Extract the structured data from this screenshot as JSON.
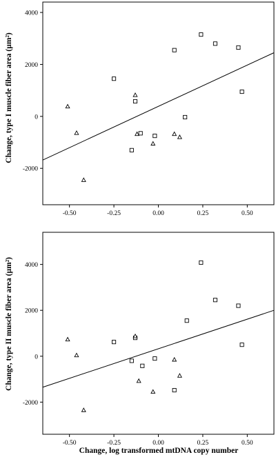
{
  "xlabel": "Change, log transformed mtDNA copy number",
  "chart_data": [
    {
      "type": "scatter",
      "title": "",
      "xlabel": "",
      "ylabel": "Change, type I muscle fiber area (µm²)",
      "xlim": [
        -0.65,
        0.65
      ],
      "ylim": [
        -3400,
        4400
      ],
      "xticks": [
        -0.5,
        -0.25,
        0.0,
        0.25,
        0.5
      ],
      "xtick_labels": [
        "-0.50",
        "-0.25",
        "0.00",
        "0.25",
        "0.50"
      ],
      "yticks": [
        -2000,
        0,
        2000,
        4000
      ],
      "ytick_labels": [
        "-2000",
        "0",
        "2000",
        "4000"
      ],
      "grid": false,
      "series": [
        {
          "marker": "square",
          "points": [
            [
              -0.25,
              1450
            ],
            [
              -0.15,
              -1300
            ],
            [
              -0.13,
              580
            ],
            [
              -0.1,
              -650
            ],
            [
              -0.02,
              -750
            ],
            [
              0.09,
              2550
            ],
            [
              0.15,
              -30
            ],
            [
              0.24,
              3150
            ],
            [
              0.32,
              2800
            ],
            [
              0.45,
              2650
            ],
            [
              0.47,
              950
            ]
          ]
        },
        {
          "marker": "triangle",
          "points": [
            [
              -0.51,
              380
            ],
            [
              -0.46,
              -640
            ],
            [
              -0.42,
              -2450
            ],
            [
              -0.13,
              820
            ],
            [
              -0.12,
              -680
            ],
            [
              -0.03,
              -1050
            ],
            [
              0.09,
              -680
            ],
            [
              0.12,
              -800
            ]
          ]
        }
      ],
      "regression_line": [
        [
          -0.65,
          -1680
        ],
        [
          0.65,
          2450
        ]
      ]
    },
    {
      "type": "scatter",
      "title": "",
      "xlabel": "",
      "ylabel": "Change, type II muscle fiber area (µm²)",
      "xlim": [
        -0.65,
        0.65
      ],
      "ylim": [
        -3400,
        5400
      ],
      "xticks": [
        -0.5,
        -0.25,
        0.0,
        0.25,
        0.5
      ],
      "xtick_labels": [
        "-0.50",
        "-0.25",
        "0.00",
        "0.25",
        "0.50"
      ],
      "yticks": [
        -2000,
        0,
        2000,
        4000
      ],
      "ytick_labels": [
        "-2000",
        "0",
        "2000",
        "4000"
      ],
      "grid": false,
      "series": [
        {
          "marker": "square",
          "points": [
            [
              -0.25,
              620
            ],
            [
              -0.15,
              -200
            ],
            [
              -0.13,
              800
            ],
            [
              -0.09,
              -420
            ],
            [
              -0.02,
              -100
            ],
            [
              0.09,
              -1480
            ],
            [
              0.16,
              1550
            ],
            [
              0.24,
              4080
            ],
            [
              0.32,
              2450
            ],
            [
              0.45,
              2200
            ],
            [
              0.47,
              500
            ]
          ]
        },
        {
          "marker": "triangle",
          "points": [
            [
              -0.51,
              730
            ],
            [
              -0.46,
              40
            ],
            [
              -0.42,
              -2350
            ],
            [
              -0.13,
              870
            ],
            [
              -0.11,
              -1080
            ],
            [
              -0.03,
              -1550
            ],
            [
              0.09,
              -150
            ],
            [
              0.12,
              -850
            ]
          ]
        }
      ],
      "regression_line": [
        [
          -0.65,
          -1350
        ],
        [
          0.65,
          2000
        ]
      ]
    }
  ]
}
